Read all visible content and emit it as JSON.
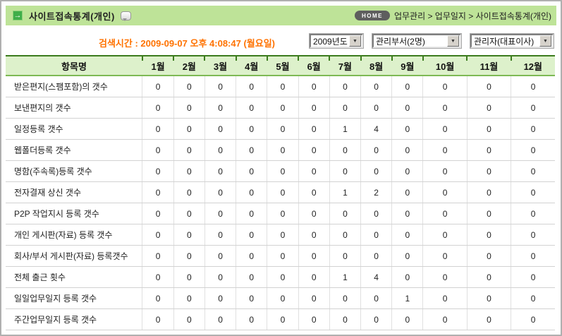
{
  "header": {
    "title": "사이트접속통계(개인)",
    "arrow_icon": "→",
    "home_label": "HOME",
    "breadcrumb": "업무관리 > 업무일지 > 사이트접속통계(개인)"
  },
  "toolbar": {
    "search_time": "검색시간 : 2009-09-07 오후 4:08:47 (월요일)",
    "selects": [
      {
        "value": "2009년도"
      },
      {
        "value": "관리부서(2명)"
      },
      {
        "value": "관리자(대표이사)"
      }
    ],
    "select_arrow": "▼"
  },
  "table": {
    "columns": [
      "항목명",
      "1월",
      "2월",
      "3월",
      "4월",
      "5월",
      "6월",
      "7월",
      "8월",
      "9월",
      "10월",
      "11월",
      "12월"
    ],
    "rows": [
      {
        "label": "받은편지(스팸포함)의 갯수",
        "values": [
          0,
          0,
          0,
          0,
          0,
          0,
          0,
          0,
          0,
          0,
          0,
          0
        ]
      },
      {
        "label": "보낸편지의 갯수",
        "values": [
          0,
          0,
          0,
          0,
          0,
          0,
          0,
          0,
          0,
          0,
          0,
          0
        ]
      },
      {
        "label": "일정등록 갯수",
        "values": [
          0,
          0,
          0,
          0,
          0,
          0,
          1,
          4,
          0,
          0,
          0,
          0
        ]
      },
      {
        "label": "웹폴더등록 갯수",
        "values": [
          0,
          0,
          0,
          0,
          0,
          0,
          0,
          0,
          0,
          0,
          0,
          0
        ]
      },
      {
        "label": "명함(주속록)등록 갯수",
        "values": [
          0,
          0,
          0,
          0,
          0,
          0,
          0,
          0,
          0,
          0,
          0,
          0
        ]
      },
      {
        "label": "전자결재 상신 갯수",
        "values": [
          0,
          0,
          0,
          0,
          0,
          0,
          1,
          2,
          0,
          0,
          0,
          0
        ]
      },
      {
        "label": "P2P 작업지시 등록 갯수",
        "values": [
          0,
          0,
          0,
          0,
          0,
          0,
          0,
          0,
          0,
          0,
          0,
          0
        ]
      },
      {
        "label": "개인 게시판(자료) 등록 갯수",
        "values": [
          0,
          0,
          0,
          0,
          0,
          0,
          0,
          0,
          0,
          0,
          0,
          0
        ]
      },
      {
        "label": "회사/부서 게시판(자료) 등록갯수",
        "values": [
          0,
          0,
          0,
          0,
          0,
          0,
          0,
          0,
          0,
          0,
          0,
          0
        ]
      },
      {
        "label": "전체 출근 횟수",
        "values": [
          0,
          0,
          0,
          0,
          0,
          0,
          1,
          4,
          0,
          0,
          0,
          0
        ]
      },
      {
        "label": "일일업무일지 등록 갯수",
        "values": [
          0,
          0,
          0,
          0,
          0,
          0,
          0,
          0,
          1,
          0,
          0,
          0
        ]
      },
      {
        "label": "주간업무일지 등록 갯수",
        "values": [
          0,
          0,
          0,
          0,
          0,
          0,
          0,
          0,
          0,
          0,
          0,
          0
        ]
      }
    ]
  },
  "colors": {
    "titlebar-green": "#bee398",
    "icon-green": "#3fae49",
    "header-green": "#ddf1cb",
    "header-border": "#3c7c1e",
    "accent-orange": "#ff7200"
  }
}
